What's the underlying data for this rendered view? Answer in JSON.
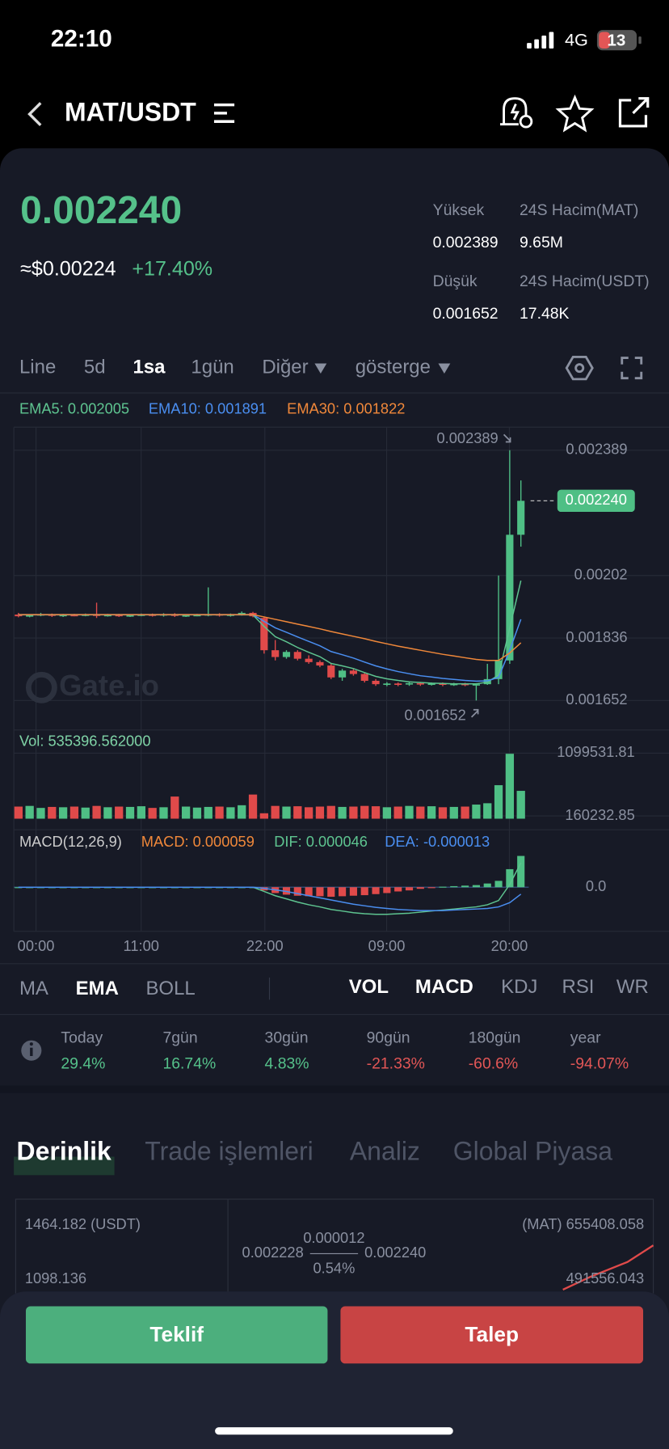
{
  "status": {
    "time": "22:10",
    "network": "4G",
    "battery": "13"
  },
  "header": {
    "pair": "MAT/USDT"
  },
  "price": {
    "last": "0.002240",
    "usd": "≈$0.00224",
    "change": "+17.40%"
  },
  "stats": [
    {
      "label": "Yüksek",
      "value": "0.002389"
    },
    {
      "label": "24S Hacim(MAT)",
      "value": "9.65M"
    },
    {
      "label": "Düşük",
      "value": "0.001652"
    },
    {
      "label": "24S Hacim(USDT)",
      "value": "17.48K"
    }
  ],
  "tabs": {
    "items": [
      "Line",
      "5d",
      "1sa",
      "1gün",
      "Diğer",
      "gösterge"
    ],
    "active": 2
  },
  "chart_data": {
    "type": "candlestick",
    "watermark": "Gate.io",
    "open": [
      0.001905,
      0.0019,
      0.001903,
      0.001906,
      0.001901,
      0.001904,
      0.001903,
      0.001905,
      0.001902,
      0.001904,
      0.001901,
      0.001903,
      0.001905,
      0.001902,
      0.001906,
      0.001901,
      0.001903,
      0.001904,
      0.001906,
      0.001902,
      0.001905,
      0.00191,
      0.001895,
      0.0018,
      0.00178,
      0.001795,
      0.001775,
      0.001765,
      0.001755,
      0.00172,
      0.00174,
      0.00173,
      0.00171,
      0.0017,
      0.001702,
      0.001699,
      0.001703,
      0.0017,
      0.001702,
      0.001698,
      0.001701,
      0.001699,
      0.0017,
      0.001715,
      0.00177,
      0.00214
    ],
    "high": [
      0.00191,
      0.001906,
      0.00191,
      0.001908,
      0.001907,
      0.001907,
      0.001908,
      0.00194,
      0.001907,
      0.001907,
      0.001906,
      0.001908,
      0.001908,
      0.001909,
      0.001909,
      0.001906,
      0.001907,
      0.001985,
      0.001909,
      0.001908,
      0.001914,
      0.001913,
      0.001898,
      0.00183,
      0.0018,
      0.0018,
      0.001785,
      0.00177,
      0.00176,
      0.001745,
      0.001745,
      0.001735,
      0.001715,
      0.001706,
      0.001705,
      0.001706,
      0.001706,
      0.001705,
      0.001705,
      0.001704,
      0.001704,
      0.001703,
      0.00176,
      0.00202,
      0.002389,
      0.0023
    ],
    "low": [
      0.001897,
      0.001897,
      0.0019,
      0.001898,
      0.001898,
      0.0019,
      0.0019,
      0.001895,
      0.001899,
      0.001898,
      0.001898,
      0.0019,
      0.001899,
      0.001899,
      0.001898,
      0.001898,
      0.0019,
      0.0019,
      0.001899,
      0.001899,
      0.001902,
      0.001897,
      0.00179,
      0.00177,
      0.001775,
      0.00177,
      0.00176,
      0.00175,
      0.001715,
      0.00171,
      0.001725,
      0.001705,
      0.001695,
      0.001694,
      0.001694,
      0.001695,
      0.001695,
      0.001696,
      0.001694,
      0.001695,
      0.001694,
      0.001652,
      0.001698,
      0.0017,
      0.00176,
      0.002105
    ],
    "close": [
      0.0019,
      0.001903,
      0.001906,
      0.001901,
      0.001904,
      0.001903,
      0.001905,
      0.001902,
      0.001904,
      0.001901,
      0.001903,
      0.001905,
      0.001902,
      0.001906,
      0.001901,
      0.001903,
      0.001904,
      0.001906,
      0.001902,
      0.001905,
      0.00191,
      0.0019,
      0.0018,
      0.00178,
      0.001795,
      0.001775,
      0.001765,
      0.001755,
      0.00172,
      0.00174,
      0.00173,
      0.00171,
      0.0017,
      0.001702,
      0.001699,
      0.001703,
      0.0017,
      0.001702,
      0.001698,
      0.001701,
      0.001699,
      0.0017,
      0.001715,
      0.00177,
      0.00214,
      0.00224
    ],
    "up_color": "#4fbf85",
    "down_color": "#e04a4a",
    "ylim": [
      0.001565,
      0.002446
    ],
    "yticks": [
      0.002389,
      0.00202,
      0.001836,
      0.001652
    ],
    "last": {
      "value": 0.00224,
      "label": "0.002240"
    },
    "high_label": "0.002389",
    "low_label": "0.001652",
    "ema": [
      {
        "label": "EMA5: 0.002005",
        "color": "#5ec490",
        "values": [
          0.001904,
          0.001904,
          0.001904,
          0.001904,
          0.001904,
          0.001904,
          0.001904,
          0.001904,
          0.001904,
          0.001904,
          0.001904,
          0.001904,
          0.001904,
          0.001904,
          0.001904,
          0.001904,
          0.001904,
          0.001904,
          0.001904,
          0.001904,
          0.001904,
          0.001904,
          0.00187,
          0.00184,
          0.001825,
          0.001808,
          0.001794,
          0.001781,
          0.001761,
          0.001754,
          0.001746,
          0.001734,
          0.001723,
          0.001716,
          0.001711,
          0.001707,
          0.001705,
          0.001703,
          0.001702,
          0.001701,
          0.001701,
          0.001701,
          0.001706,
          0.001727,
          0.001865,
          0.002005
        ]
      },
      {
        "label": "EMA10: 0.001891",
        "color": "#4a8ef0",
        "values": [
          0.001905,
          0.001905,
          0.001905,
          0.001905,
          0.001905,
          0.001905,
          0.001905,
          0.001905,
          0.001905,
          0.001905,
          0.001905,
          0.001905,
          0.001905,
          0.001905,
          0.001905,
          0.001905,
          0.001905,
          0.001905,
          0.001905,
          0.001905,
          0.001905,
          0.001905,
          0.001885,
          0.001866,
          0.001853,
          0.001839,
          0.001826,
          0.001813,
          0.001796,
          0.001787,
          0.001777,
          0.001765,
          0.001754,
          0.001745,
          0.001737,
          0.001731,
          0.001725,
          0.001721,
          0.001717,
          0.001714,
          0.001711,
          0.001709,
          0.00171,
          0.00172,
          0.0018,
          0.001891
        ]
      },
      {
        "label": "EMA30: 0.001822",
        "color": "#f0883a",
        "values": [
          0.001905,
          0.001905,
          0.001905,
          0.001905,
          0.001905,
          0.001905,
          0.001905,
          0.001905,
          0.001905,
          0.001905,
          0.001905,
          0.001905,
          0.001905,
          0.001905,
          0.001905,
          0.001905,
          0.001905,
          0.001905,
          0.001905,
          0.001905,
          0.001905,
          0.001905,
          0.001898,
          0.001891,
          0.001884,
          0.001877,
          0.00187,
          0.001863,
          0.001855,
          0.001848,
          0.001841,
          0.001834,
          0.001826,
          0.001819,
          0.001812,
          0.001806,
          0.0018,
          0.001794,
          0.001788,
          0.001783,
          0.001778,
          0.001773,
          0.00177,
          0.00177,
          0.001792,
          0.001822
        ]
      }
    ],
    "volume": {
      "label": "Vol: 535396.562000",
      "ylim": [
        118793,
        1099531.81
      ],
      "yticks": [
        1099531.81,
        160232.85
      ],
      "values": [
        300000,
        310000,
        280000,
        295000,
        290000,
        300000,
        285000,
        310000,
        290000,
        300000,
        295000,
        305000,
        280000,
        290000,
        450000,
        300000,
        285000,
        295000,
        300000,
        290000,
        320000,
        480000,
        200000,
        310000,
        300000,
        305000,
        290000,
        300000,
        310000,
        295000,
        300000,
        310000,
        305000,
        290000,
        300000,
        310000,
        300000,
        305000,
        290000,
        295000,
        300000,
        330000,
        350000,
        620000,
        1090000,
        535396.562
      ]
    },
    "macd": {
      "title": "MACD(12,26,9)",
      "macd_label": "MACD: 0.000059",
      "dif_label": "DIF: 0.000046",
      "dea_label": "DEA: -0.000013",
      "macd_color": "#f0883a",
      "dif_color": "#5ec490",
      "dea_color": "#4a8ef0",
      "ylim": [
        -7.8e-05,
        7e-05
      ],
      "yticks": [
        {
          "value": 0,
          "label": "0.0"
        }
      ],
      "histogram": [
        0,
        0,
        0,
        0,
        0,
        0,
        0,
        0,
        0,
        0,
        0,
        0,
        0,
        0,
        0,
        0,
        0,
        0,
        0,
        0,
        0,
        0,
        -6e-06,
        -1.1e-05,
        -1.4e-05,
        -1.6e-05,
        -1.7e-05,
        -1.7e-05,
        -1.8e-05,
        -1.7e-05,
        -1.6e-05,
        -1.5e-05,
        -1.3e-05,
        -1.1e-05,
        -8e-06,
        -6e-06,
        -3e-06,
        -1e-06,
        1e-06,
        2e-06,
        3e-06,
        4e-06,
        7e-06,
        1.2e-05,
        3.4e-05,
        5.9e-05
      ],
      "dif": [
        0,
        0,
        0,
        0,
        0,
        0,
        0,
        0,
        0,
        0,
        0,
        0,
        0,
        0,
        0,
        0,
        0,
        0,
        0,
        0,
        0,
        0,
        -8e-06,
        -1.6e-05,
        -2.2e-05,
        -2.8e-05,
        -3.3e-05,
        -3.7e-05,
        -4.2e-05,
        -4.5e-05,
        -4.8e-05,
        -5e-05,
        -5.1e-05,
        -5.1e-05,
        -5e-05,
        -4.9e-05,
        -4.7e-05,
        -4.5e-05,
        -4.3e-05,
        -4.1e-05,
        -3.9e-05,
        -3.7e-05,
        -3.3e-05,
        -2.5e-05,
        5e-06,
        4.6e-05
      ],
      "dea": [
        0,
        0,
        0,
        0,
        0,
        0,
        0,
        0,
        0,
        0,
        0,
        0,
        0,
        0,
        0,
        0,
        0,
        0,
        0,
        0,
        0,
        0,
        -2e-06,
        -5e-06,
        -8e-06,
        -1.2e-05,
        -1.6e-05,
        -2e-05,
        -2.4e-05,
        -2.8e-05,
        -3.2e-05,
        -3.5e-05,
        -3.8e-05,
        -4e-05,
        -4.2e-05,
        -4.3e-05,
        -4.4e-05,
        -4.4e-05,
        -4.4e-05,
        -4.3e-05,
        -4.2e-05,
        -4.1e-05,
        -4e-05,
        -3.7e-05,
        -2.9e-05,
        -1.3e-05
      ]
    },
    "time_labels": [
      "00:00",
      "11:00",
      "22:00",
      "09:00",
      "20:00"
    ]
  },
  "indicators": {
    "main": [
      "MA",
      "EMA",
      "BOLL"
    ],
    "main_active": 1,
    "sub": [
      "VOL",
      "MACD",
      "KDJ",
      "RSI",
      "WR"
    ],
    "sub_active": [
      0,
      1
    ]
  },
  "performance": [
    {
      "label": "Today",
      "value": "29.4%",
      "color": "#55c18a"
    },
    {
      "label": "7gün",
      "value": "16.74%",
      "color": "#55c18a"
    },
    {
      "label": "30gün",
      "value": "4.83%",
      "color": "#55c18a"
    },
    {
      "label": "90gün",
      "value": "-21.33%",
      "color": "#e25656"
    },
    {
      "label": "180gün",
      "value": "-60.6%",
      "color": "#e25656"
    },
    {
      "label": "year",
      "value": "-94.07%",
      "color": "#e25656"
    }
  ],
  "section_tabs": {
    "items": [
      "Derinlik",
      "Trade işlemleri",
      "Analiz",
      "Global Piyasa"
    ],
    "active": 0
  },
  "depth": {
    "left_top": "1464.182 (USDT)",
    "left_mid": "1098.136",
    "right_top": "(MAT) 655408.058",
    "right_mid": "491556.043",
    "bid": "0.002228",
    "spread": "0.000012",
    "spread_pct": "0.54%",
    "ask": "0.002240"
  },
  "actions": {
    "buy": "Teklif",
    "sell": "Talep"
  }
}
